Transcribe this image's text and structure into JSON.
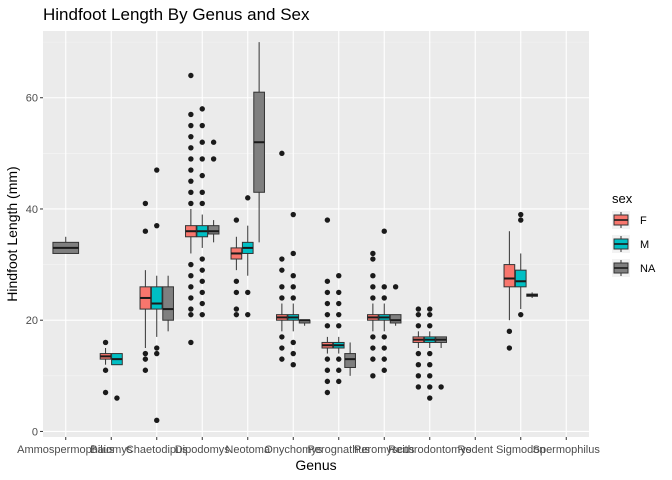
{
  "chart_data": {
    "type": "boxplot",
    "title": "Hindfoot Length By Genus and Sex",
    "xlabel": "Genus",
    "ylabel": "Hindfoot Length (mm)",
    "ylim": [
      -1,
      72
    ],
    "yticks": [
      0,
      20,
      40,
      60
    ],
    "grid": true,
    "legend": {
      "title": "sex",
      "position": "right",
      "entries": [
        "F",
        "M",
        "NA"
      ]
    },
    "colors": {
      "F": "#F8766D",
      "M": "#00BFC4",
      "NA": "#7F7F7F",
      "panel": "#EBEBEB",
      "grid_major": "#FFFFFF"
    },
    "categories": [
      "Ammospermophilus",
      "Baiomys",
      "Chaetodipus",
      "Dipodomys",
      "Neotoma",
      "Onychomys",
      "Perognathus",
      "Peromyscus",
      "Reithrodontomys",
      "Rodent",
      "Sigmodon",
      "Spermophilus"
    ],
    "series": [
      {
        "name": "F",
        "boxes": [
          {
            "category": "Baiomys",
            "min": 12,
            "q1": 13,
            "median": 13.5,
            "q3": 14,
            "max": 15,
            "outliers": [
              7,
              11,
              16
            ]
          },
          {
            "category": "Chaetodipus",
            "min": 15,
            "q1": 22,
            "median": 24,
            "q3": 26,
            "max": 29,
            "outliers": [
              11,
              13,
              14,
              36,
              41
            ]
          },
          {
            "category": "Dipodomys",
            "min": 32,
            "q1": 35,
            "median": 36,
            "q3": 37,
            "max": 40,
            "outliers": [
              16,
              21,
              22,
              24,
              26,
              28,
              30,
              41,
              43,
              45,
              47,
              49,
              51,
              53,
              55,
              57,
              64
            ]
          },
          {
            "category": "Neotoma",
            "min": 29,
            "q1": 31,
            "median": 32,
            "q3": 33,
            "max": 35,
            "outliers": [
              21,
              22,
              25,
              27,
              38
            ]
          },
          {
            "category": "Onychomys",
            "min": 18,
            "q1": 20,
            "median": 20.5,
            "q3": 21,
            "max": 23,
            "outliers": [
              13,
              15,
              17,
              24,
              26,
              29,
              31,
              50
            ]
          },
          {
            "category": "Perognathus",
            "min": 14,
            "q1": 15,
            "median": 15.5,
            "q3": 16,
            "max": 17,
            "outliers": [
              7,
              9,
              11,
              13,
              19,
              21,
              23,
              25,
              27,
              38
            ]
          },
          {
            "category": "Peromyscus",
            "min": 18,
            "q1": 20,
            "median": 20.5,
            "q3": 21,
            "max": 23,
            "outliers": [
              10,
              13,
              15,
              17,
              24,
              26,
              28,
              31,
              32
            ]
          },
          {
            "category": "Reithrodontomys",
            "min": 15,
            "q1": 16,
            "median": 16.5,
            "q3": 17,
            "max": 18,
            "outliers": [
              8,
              10,
              12,
              14,
              19,
              21,
              22
            ]
          },
          {
            "category": "Sigmodon",
            "min": 20,
            "q1": 26,
            "median": 27.5,
            "q3": 30,
            "max": 36,
            "outliers": [
              15,
              18
            ]
          }
        ]
      },
      {
        "name": "M",
        "boxes": [
          {
            "category": "Baiomys",
            "min": 12,
            "q1": 12,
            "median": 13,
            "q3": 14,
            "max": 14,
            "outliers": [
              6
            ]
          },
          {
            "category": "Chaetodipus",
            "min": 17,
            "q1": 22,
            "median": 23,
            "q3": 26,
            "max": 28,
            "outliers": [
              2,
              14,
              15,
              37,
              47
            ]
          },
          {
            "category": "Dipodomys",
            "min": 33,
            "q1": 35,
            "median": 36,
            "q3": 37,
            "max": 39,
            "outliers": [
              21,
              23,
              25,
              27,
              29,
              31,
              41,
              43,
              46,
              49,
              52,
              55,
              58
            ]
          },
          {
            "category": "Neotoma",
            "min": 28,
            "q1": 32,
            "median": 33,
            "q3": 34,
            "max": 37,
            "outliers": [
              21,
              25,
              42
            ]
          },
          {
            "category": "Onychomys",
            "min": 18,
            "q1": 20,
            "median": 20.5,
            "q3": 21,
            "max": 23,
            "outliers": [
              12,
              14,
              16,
              24,
              26,
              28,
              32,
              39
            ]
          },
          {
            "category": "Perognathus",
            "min": 14,
            "q1": 15,
            "median": 15.5,
            "q3": 16,
            "max": 17,
            "outliers": [
              9,
              11,
              13,
              19,
              21,
              23,
              25,
              28
            ]
          },
          {
            "category": "Peromyscus",
            "min": 18,
            "q1": 20,
            "median": 20.5,
            "q3": 21,
            "max": 23,
            "outliers": [
              11,
              13,
              15,
              17,
              24,
              26,
              36
            ]
          },
          {
            "category": "Reithrodontomys",
            "min": 15,
            "q1": 16,
            "median": 16.5,
            "q3": 17,
            "max": 18,
            "outliers": [
              6,
              8,
              10,
              12,
              14,
              19,
              21,
              22
            ]
          },
          {
            "category": "Sigmodon",
            "min": 22,
            "q1": 26,
            "median": 27,
            "q3": 29,
            "max": 32,
            "outliers": [
              21,
              38,
              39
            ]
          }
        ]
      },
      {
        "name": "NA",
        "boxes": [
          {
            "category": "Ammospermophilus",
            "min": 32,
            "q1": 32,
            "median": 33,
            "q3": 34,
            "max": 35,
            "outliers": []
          },
          {
            "category": "Chaetodipus",
            "min": 18,
            "q1": 20,
            "median": 22,
            "q3": 26,
            "max": 28,
            "outliers": []
          },
          {
            "category": "Dipodomys",
            "min": 34,
            "q1": 35.5,
            "median": 36,
            "q3": 37,
            "max": 38,
            "outliers": [
              49,
              52
            ]
          },
          {
            "category": "Neotoma",
            "min": 34,
            "q1": 43,
            "median": 52,
            "q3": 61,
            "max": 70,
            "outliers": []
          },
          {
            "category": "Onychomys",
            "min": 19,
            "q1": 19.5,
            "median": 20,
            "q3": 20,
            "max": 20,
            "outliers": []
          },
          {
            "category": "Perognathus",
            "min": 10,
            "q1": 11.5,
            "median": 13,
            "q3": 14,
            "max": 16,
            "outliers": []
          },
          {
            "category": "Peromyscus",
            "min": 19,
            "q1": 19.5,
            "median": 20,
            "q3": 21,
            "max": 21,
            "outliers": [
              26
            ]
          },
          {
            "category": "Reithrodontomys",
            "min": 15,
            "q1": 16,
            "median": 16.5,
            "q3": 17,
            "max": 17,
            "outliers": [
              8
            ]
          },
          {
            "category": "Sigmodon",
            "min": 24,
            "q1": 24.3,
            "median": 24.5,
            "q3": 24.7,
            "max": 25,
            "outliers": []
          }
        ]
      }
    ]
  }
}
